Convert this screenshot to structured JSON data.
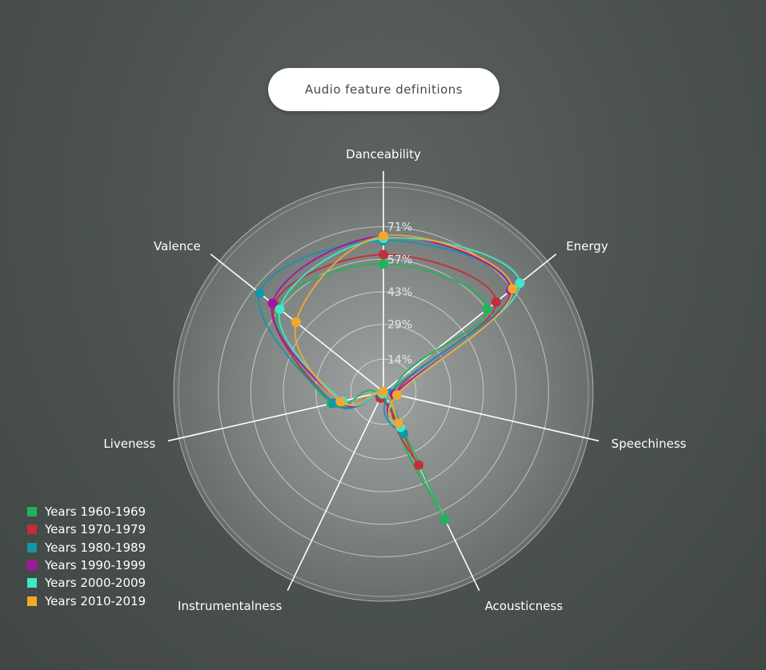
{
  "header": {
    "definitions_button_label": "Audio feature definitions"
  },
  "chart_data": {
    "type": "radar",
    "title": "",
    "axes": [
      "Danceability",
      "Energy",
      "Speechiness",
      "Acousticness",
      "Instrumentalness",
      "Liveness",
      "Valence"
    ],
    "radial_ticks": [
      "14%",
      "29%",
      "43%",
      "57%",
      "71%"
    ],
    "radial_tick_values": [
      14,
      29,
      43,
      57,
      71
    ],
    "radial_max": 86,
    "grid": true,
    "legend_position": "bottom-left",
    "series": [
      {
        "name": "Years 1960-1969",
        "color": "#1fb45a",
        "values": [
          55,
          57,
          4,
          61,
          2,
          23,
          58
        ]
      },
      {
        "name": "Years 1970-1979",
        "color": "#c0303b",
        "values": [
          59,
          62,
          5,
          35,
          3,
          22,
          60
        ]
      },
      {
        "name": "Years 1980-1989",
        "color": "#1496a8",
        "values": [
          65,
          71,
          3,
          20,
          1,
          22,
          68
        ]
      },
      {
        "name": "Years 1990-1999",
        "color": "#a514a5",
        "values": [
          67,
          70,
          5,
          16,
          1,
          19,
          61
        ]
      },
      {
        "name": "Years 2000-2009",
        "color": "#3fe6c8",
        "values": [
          66,
          75,
          6,
          17,
          1,
          18,
          57
        ]
      },
      {
        "name": "Years 2010-2019",
        "color": "#f0a830",
        "values": [
          67,
          71,
          6,
          15,
          0,
          19,
          48
        ]
      }
    ]
  }
}
